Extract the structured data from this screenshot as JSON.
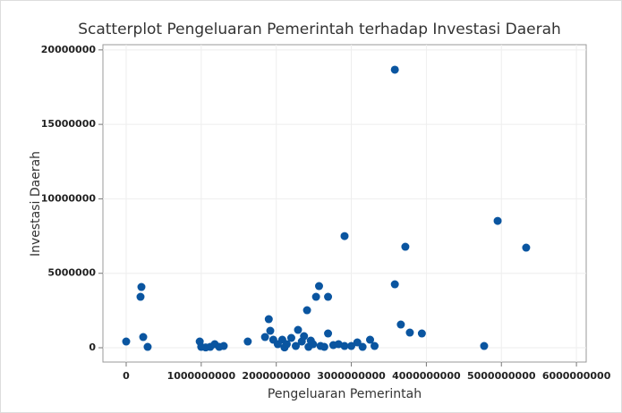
{
  "chart_data": {
    "type": "scatter",
    "title": "Scatterplot Pengeluaran Pemerintah terhadap Investasi Daerah",
    "x_label": "Pengeluaran Pemerintah",
    "y_label": "Investasi Daerah",
    "color": "#0a55a0",
    "grid": true,
    "xlim": [
      -310000000,
      6130000000
    ],
    "ylim": [
      -960000,
      20350000
    ],
    "xticks": [
      0,
      1000000000,
      2000000000,
      3000000000,
      4000000000,
      5000000000,
      6000000000
    ],
    "yticks": [
      0,
      5000000,
      10000000,
      15000000,
      20000000
    ],
    "x": [
      0,
      191000000,
      203000000,
      227000000,
      286000000,
      980000000,
      1000000000,
      1060000000,
      1120000000,
      1180000000,
      1240000000,
      1300000000,
      1620000000,
      1850000000,
      1900000000,
      1920000000,
      1960000000,
      2020000000,
      2080000000,
      2110000000,
      2140000000,
      2200000000,
      2260000000,
      2290000000,
      2340000000,
      2370000000,
      2410000000,
      2430000000,
      2460000000,
      2490000000,
      2530000000,
      2570000000,
      2590000000,
      2640000000,
      2690000000,
      2690000000,
      2760000000,
      2830000000,
      2910000000,
      2910000000,
      3000000000,
      3080000000,
      3150000000,
      3250000000,
      3310000000,
      3580000000,
      3580000000,
      3660000000,
      3720000000,
      3780000000,
      3940000000,
      4770000000,
      4950000000,
      5330000000
    ],
    "values": [
      420000,
      3420000,
      4080000,
      720000,
      60000,
      420000,
      60000,
      20000,
      60000,
      240000,
      60000,
      120000,
      420000,
      720000,
      1920000,
      1140000,
      540000,
      240000,
      540000,
      20000,
      240000,
      660000,
      120000,
      1200000,
      420000,
      780000,
      2520000,
      60000,
      480000,
      240000,
      3420000,
      4140000,
      120000,
      60000,
      3420000,
      960000,
      180000,
      240000,
      7500000,
      120000,
      120000,
      360000,
      60000,
      540000,
      120000,
      18670000,
      4260000,
      1560000,
      6780000,
      1020000,
      960000,
      120000,
      8520000,
      6720000
    ]
  }
}
